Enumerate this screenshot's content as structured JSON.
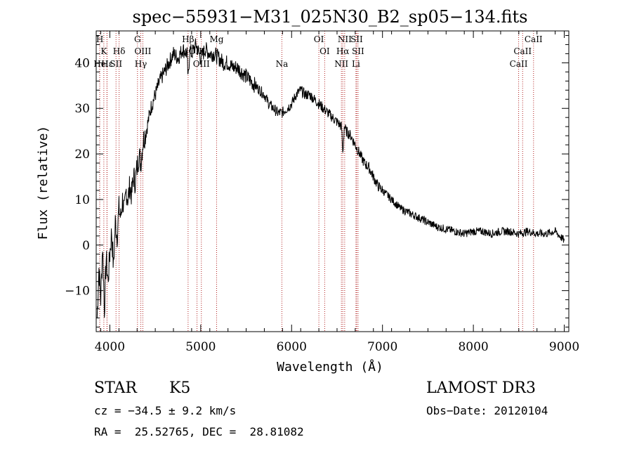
{
  "chart_data": {
    "type": "line",
    "title": "spec−55931−M31_025N30_B2_sp05−134.fits",
    "xlabel": "Wavelength (Å)",
    "ylabel": "Flux (relative)",
    "xlim": [
      3850,
      9050
    ],
    "ylim": [
      -19,
      47
    ],
    "x_ticks": [
      4000,
      5000,
      6000,
      7000,
      8000,
      9000
    ],
    "x_tick_labels": [
      "4000",
      "5000",
      "6000",
      "7000",
      "8000",
      "9000"
    ],
    "y_ticks": [
      -10,
      0,
      10,
      20,
      30,
      40
    ],
    "y_tick_labels": [
      "−10",
      "0",
      "10",
      "20",
      "30",
      "40"
    ],
    "grid": false,
    "series": [
      {
        "name": "spectrum",
        "x": [
          3860,
          3880,
          3900,
          3920,
          3940,
          3960,
          3980,
          4000,
          4020,
          4040,
          4060,
          4080,
          4100,
          4120,
          4140,
          4160,
          4180,
          4200,
          4220,
          4240,
          4260,
          4280,
          4300,
          4320,
          4340,
          4360,
          4380,
          4400,
          4450,
          4500,
          4550,
          4600,
          4650,
          4700,
          4750,
          4800,
          4850,
          4861,
          4880,
          4900,
          4950,
          5000,
          5050,
          5100,
          5150,
          5200,
          5250,
          5300,
          5350,
          5400,
          5450,
          5500,
          5550,
          5600,
          5650,
          5700,
          5750,
          5800,
          5850,
          5893,
          5950,
          6000,
          6050,
          6100,
          6150,
          6200,
          6250,
          6300,
          6350,
          6400,
          6450,
          6500,
          6550,
          6563,
          6580,
          6600,
          6650,
          6700,
          6750,
          6800,
          6850,
          6900,
          6950,
          7000,
          7100,
          7200,
          7300,
          7400,
          7500,
          7600,
          7700,
          7800,
          7900,
          8000,
          8100,
          8200,
          8300,
          8400,
          8500,
          8600,
          8700,
          8800,
          8900,
          9000
        ],
        "y": [
          -16,
          -5,
          -12,
          0,
          -14,
          -3,
          -8,
          -2,
          3,
          -5,
          5,
          2,
          8,
          6,
          10,
          7,
          12,
          10,
          13,
          11,
          15,
          14,
          17,
          20,
          18,
          22,
          24,
          25,
          30,
          33,
          36,
          38,
          40,
          42,
          41,
          43,
          42,
          36,
          43,
          42,
          44,
          41,
          43,
          42,
          42,
          41,
          40,
          40,
          39,
          39,
          38,
          37,
          36,
          35,
          34,
          33,
          31,
          30,
          29,
          29,
          30,
          31,
          33,
          34,
          33,
          33,
          32,
          31,
          30,
          29,
          28,
          27,
          26,
          20,
          26,
          25,
          24,
          22,
          20,
          18,
          17,
          15,
          13,
          12,
          10,
          8,
          7,
          6,
          5,
          4,
          3.5,
          3,
          2.5,
          3,
          3,
          2.5,
          3,
          3,
          2.5,
          3,
          2.5,
          2.5,
          3,
          1
        ]
      }
    ],
    "line_markers": [
      {
        "wavelength": 3889,
        "label": "H",
        "row": 1
      },
      {
        "wavelength": 3934,
        "label": "K",
        "row": 2
      },
      {
        "wavelength": 3970,
        "label": "Hε",
        "row": 3
      },
      {
        "wavelength": 3889,
        "label": "He",
        "row": 3
      },
      {
        "wavelength": 3968,
        "label": "I",
        "row": 3
      },
      {
        "wavelength": 4068,
        "label": "SII",
        "row": 3
      },
      {
        "wavelength": 4102,
        "label": "Hδ",
        "row": 2
      },
      {
        "wavelength": 4304,
        "label": "G",
        "row": 1
      },
      {
        "wavelength": 4363,
        "label": "OIII",
        "row": 2
      },
      {
        "wavelength": 4341,
        "label": "Hγ",
        "row": 3
      },
      {
        "wavelength": 4861,
        "label": "Hβ",
        "row": 1
      },
      {
        "wavelength": 4959,
        "label": "OIII",
        "row": 2
      },
      {
        "wavelength": 5007,
        "label": "OIII",
        "row": 3
      },
      {
        "wavelength": 5175,
        "label": "Mg",
        "row": 1
      },
      {
        "wavelength": 5893,
        "label": "Na",
        "row": 3
      },
      {
        "wavelength": 6300,
        "label": "OI",
        "row": 1
      },
      {
        "wavelength": 6364,
        "label": "OI",
        "row": 2
      },
      {
        "wavelength": 6548,
        "label": "NII",
        "row": 3
      },
      {
        "wavelength": 6563,
        "label": "Hα",
        "row": 2
      },
      {
        "wavelength": 6584,
        "label": "NII",
        "row": 1
      },
      {
        "wavelength": 6716,
        "label": "SII",
        "row": 1
      },
      {
        "wavelength": 6731,
        "label": "SII",
        "row": 2
      },
      {
        "wavelength": 6708,
        "label": "Li",
        "row": 3
      },
      {
        "wavelength": 8498,
        "label": "CaII",
        "row": 3
      },
      {
        "wavelength": 8542,
        "label": "CaII",
        "row": 2
      },
      {
        "wavelength": 8662,
        "label": "CaII",
        "row": 1
      }
    ],
    "annotations": {
      "object_class": "STAR",
      "subclass": "K5",
      "survey": "LAMOST DR3",
      "redshift_text": "cz = −34.5 ± 9.2 km/s",
      "obs_date": "Obs−Date: 20120104",
      "coords": "RA =  25.52765, DEC =  28.81082"
    }
  },
  "colors": {
    "spectrum": "#000000",
    "line_marker": "#b22222",
    "axis": "#000000",
    "background": "#ffffff"
  }
}
